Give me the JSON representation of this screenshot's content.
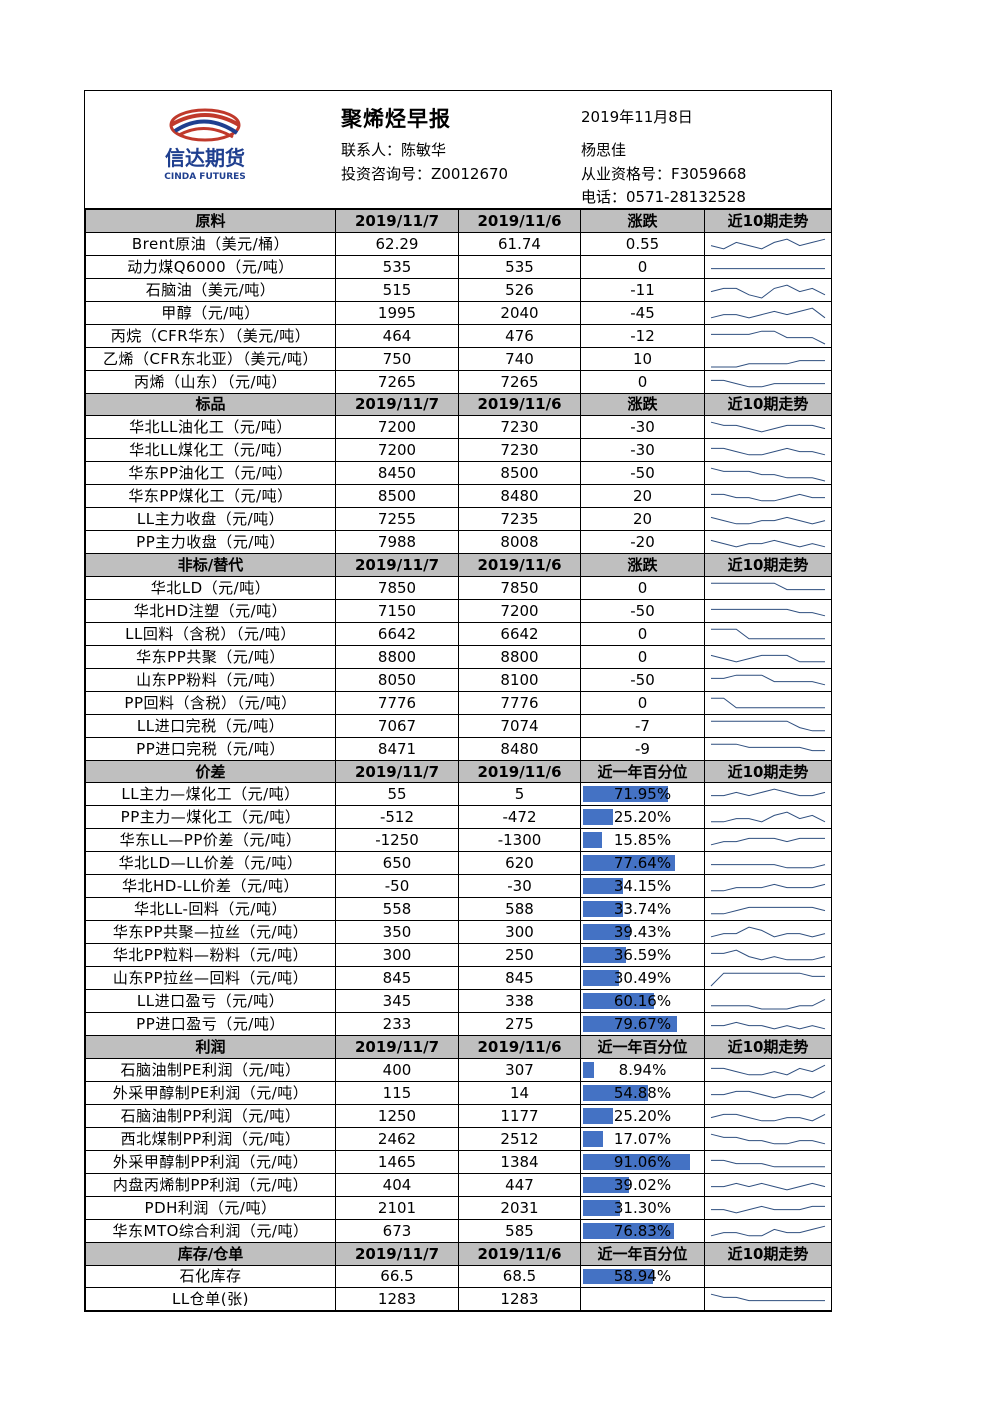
{
  "header": {
    "title": "聚烯烃早报",
    "date": "2019年11月8日",
    "contact1": "联系人：陈敏华",
    "contact1_cert": "投资咨询号：Z0012670",
    "contact2": "杨思佳",
    "contact2_cert": "从业资格号：F3059668",
    "phone": "电话：0571-28132528",
    "logo_text": "信达期货",
    "logo_sub": "CINDA FUTURES"
  },
  "colors": {
    "section_bg": "#bfbfbf",
    "bar": "#4472c4",
    "spark": "#2f4f7f"
  },
  "sections": [
    {
      "title": "原料",
      "col1": "2019/11/7",
      "col2": "2019/11/6",
      "col3": "涨跌",
      "col4": "近10期走势",
      "rows": [
        {
          "label": "Brent原油（美元/桶）",
          "v1": "62.29",
          "v2": "61.74",
          "v3": "0.55",
          "trend": [
            5,
            4,
            6,
            5,
            4,
            6,
            7,
            5,
            6,
            7
          ]
        },
        {
          "label": "动力煤Q6000（元/吨）",
          "v1": "535",
          "v2": "535",
          "v3": "0",
          "trend": [
            5,
            5,
            5,
            5,
            5,
            5,
            5,
            5,
            5,
            5
          ]
        },
        {
          "label": "石脑油（美元/吨）",
          "v1": "515",
          "v2": "526",
          "v3": "-11",
          "trend": [
            5,
            6,
            6,
            4,
            3,
            6,
            7,
            5,
            6,
            4
          ]
        },
        {
          "label": "甲醇（元/吨）",
          "v1": "1995",
          "v2": "2040",
          "v3": "-45",
          "trend": [
            4,
            5,
            5,
            4,
            5,
            6,
            5,
            6,
            7,
            4
          ]
        },
        {
          "label": "丙烷（CFR华东）（美元/吨）",
          "v1": "464",
          "v2": "476",
          "v3": "-12",
          "trend": [
            6,
            6,
            6,
            6,
            7,
            7,
            5,
            5,
            5,
            3
          ]
        },
        {
          "label": "乙烯（CFR东北亚）（美元/吨）",
          "v1": "750",
          "v2": "740",
          "v3": "10",
          "trend": [
            3,
            3,
            3,
            4,
            4,
            4,
            4,
            5,
            5,
            5
          ]
        },
        {
          "label": "丙烯（山东）（元/吨）",
          "v1": "7265",
          "v2": "7265",
          "v3": "0",
          "trend": [
            6,
            6,
            5,
            4,
            4,
            5,
            5,
            5,
            5,
            5
          ]
        }
      ]
    },
    {
      "title": "标品",
      "col1": "2019/11/7",
      "col2": "2019/11/6",
      "col3": "涨跌",
      "col4": "近10期走势",
      "rows": [
        {
          "label": "华北LL油化工（元/吨）",
          "v1": "7200",
          "v2": "7230",
          "v3": "-30",
          "trend": [
            7,
            6,
            6,
            5,
            4,
            5,
            6,
            6,
            6,
            5
          ]
        },
        {
          "label": "华北LL煤化工（元/吨）",
          "v1": "7200",
          "v2": "7230",
          "v3": "-30",
          "trend": [
            6,
            6,
            5,
            4,
            4,
            5,
            6,
            5,
            5,
            4
          ]
        },
        {
          "label": "华东PP油化工（元/吨）",
          "v1": "8450",
          "v2": "8500",
          "v3": "-50",
          "trend": [
            7,
            6,
            6,
            6,
            5,
            5,
            4,
            4,
            4,
            3
          ]
        },
        {
          "label": "华东PP煤化工（元/吨）",
          "v1": "8500",
          "v2": "8480",
          "v3": "20",
          "trend": [
            6,
            6,
            5,
            5,
            4,
            4,
            5,
            6,
            5,
            5
          ]
        },
        {
          "label": "LL主力收盘（元/吨）",
          "v1": "7255",
          "v2": "7235",
          "v3": "20",
          "trend": [
            6,
            5,
            4,
            4,
            5,
            5,
            6,
            5,
            4,
            5
          ]
        },
        {
          "label": "PP主力收盘（元/吨）",
          "v1": "7988",
          "v2": "8008",
          "v3": "-20",
          "trend": [
            6,
            5,
            4,
            5,
            5,
            6,
            5,
            4,
            5,
            4
          ]
        }
      ]
    },
    {
      "title": "非标/替代",
      "col1": "2019/11/7",
      "col2": "2019/11/6",
      "col3": "涨跌",
      "col4": "近10期走势",
      "rows": [
        {
          "label": "华北LD（元/吨）",
          "v1": "7850",
          "v2": "7850",
          "v3": "0",
          "trend": [
            7,
            7,
            7,
            7,
            7,
            7,
            5,
            5,
            5,
            5
          ]
        },
        {
          "label": "华北HD注塑（元/吨）",
          "v1": "7150",
          "v2": "7200",
          "v3": "-50",
          "trend": [
            6,
            6,
            6,
            6,
            6,
            6,
            6,
            5,
            5,
            4
          ]
        },
        {
          "label": "LL回料（含税）（元/吨）",
          "v1": "6642",
          "v2": "6642",
          "v3": "0",
          "trend": [
            7,
            7,
            7,
            4,
            4,
            4,
            4,
            4,
            4,
            4
          ]
        },
        {
          "label": "华东PP共聚（元/吨）",
          "v1": "8800",
          "v2": "8800",
          "v3": "0",
          "trend": [
            6,
            5,
            4,
            5,
            6,
            6,
            6,
            4,
            4,
            4
          ]
        },
        {
          "label": "山东PP粉料（元/吨）",
          "v1": "8050",
          "v2": "8100",
          "v3": "-50",
          "trend": [
            6,
            6,
            7,
            7,
            7,
            5,
            5,
            5,
            5,
            4
          ]
        },
        {
          "label": "PP回料（含税）（元/吨）",
          "v1": "7776",
          "v2": "7776",
          "v3": "0",
          "trend": [
            7,
            7,
            4,
            4,
            4,
            4,
            4,
            4,
            4,
            4
          ]
        },
        {
          "label": "LL进口完税（元/吨）",
          "v1": "7067",
          "v2": "7074",
          "v3": "-7",
          "trend": [
            7,
            7,
            7,
            7,
            7,
            7,
            7,
            5,
            4,
            4
          ]
        },
        {
          "label": "PP进口完税（元/吨）",
          "v1": "8471",
          "v2": "8480",
          "v3": "-9",
          "trend": [
            7,
            7,
            7,
            6,
            6,
            6,
            6,
            6,
            5,
            5
          ]
        }
      ]
    },
    {
      "title": "价差",
      "col1": "2019/11/7",
      "col2": "2019/11/6",
      "col3": "近一年百分位",
      "col4": "近10期走势",
      "rows": [
        {
          "label": "LL主力—煤化工（元/吨）",
          "v1": "55",
          "v2": "5",
          "v3": "71.95%",
          "pct": 0.7195,
          "trend": [
            5,
            5,
            6,
            5,
            6,
            7,
            6,
            5,
            5,
            6
          ]
        },
        {
          "label": "PP主力—煤化工（元/吨）",
          "v1": "-512",
          "v2": "-472",
          "v3": "25.20%",
          "pct": 0.252,
          "trend": [
            4,
            4,
            5,
            5,
            4,
            6,
            7,
            5,
            6,
            4
          ]
        },
        {
          "label": "华东LL—PP价差（元/吨）",
          "v1": "-1250",
          "v2": "-1300",
          "v3": "15.85%",
          "pct": 0.1585,
          "trend": [
            4,
            5,
            5,
            6,
            6,
            6,
            5,
            6,
            6,
            6
          ]
        },
        {
          "label": "华北LD—LL价差（元/吨）",
          "v1": "650",
          "v2": "620",
          "v3": "77.64%",
          "pct": 0.7764,
          "trend": [
            5,
            5,
            5,
            5,
            5,
            5,
            4,
            4,
            4,
            5
          ]
        },
        {
          "label": "华北HD-LL价差（元/吨）",
          "v1": "-50",
          "v2": "-30",
          "v3": "34.15%",
          "pct": 0.3415,
          "trend": [
            4,
            4,
            5,
            5,
            5,
            6,
            5,
            5,
            5,
            6
          ]
        },
        {
          "label": "华北LL-回料（元/吨）",
          "v1": "558",
          "v2": "588",
          "v3": "33.74%",
          "pct": 0.3374,
          "trend": [
            4,
            4,
            5,
            6,
            6,
            6,
            6,
            6,
            6,
            5
          ]
        },
        {
          "label": "华东PP共聚—拉丝（元/吨）",
          "v1": "350",
          "v2": "300",
          "v3": "39.43%",
          "pct": 0.3943,
          "trend": [
            4,
            5,
            5,
            7,
            6,
            4,
            5,
            5,
            4,
            5
          ]
        },
        {
          "label": "华北PP粒料—粉料（元/吨）",
          "v1": "300",
          "v2": "250",
          "v3": "36.59%",
          "pct": 0.3659,
          "trend": [
            6,
            6,
            7,
            5,
            4,
            5,
            4,
            4,
            4,
            5
          ]
        },
        {
          "label": "山东PP拉丝—回料（元/吨）",
          "v1": "845",
          "v2": "845",
          "v3": "30.49%",
          "pct": 0.3049,
          "trend": [
            3,
            7,
            7,
            7,
            7,
            7,
            7,
            7,
            6,
            6
          ]
        },
        {
          "label": "LL进口盈亏（元/吨）",
          "v1": "345",
          "v2": "338",
          "v3": "60.16%",
          "pct": 0.6016,
          "trend": [
            4,
            4,
            4,
            4,
            3,
            3,
            3,
            4,
            4,
            6
          ]
        },
        {
          "label": "PP进口盈亏（元/吨）",
          "v1": "233",
          "v2": "275",
          "v3": "79.67%",
          "pct": 0.7967,
          "trend": [
            5,
            5,
            6,
            5,
            5,
            4,
            5,
            4,
            5,
            4
          ]
        }
      ]
    },
    {
      "title": "利润",
      "col1": "2019/11/7",
      "col2": "2019/11/6",
      "col3": "近一年百分位",
      "col4": "近10期走势",
      "rows": [
        {
          "label": "石脑油制PE利润（元/吨）",
          "v1": "400",
          "v2": "307",
          "v3": "8.94%",
          "pct": 0.0894,
          "trend": [
            6,
            6,
            5,
            4,
            4,
            5,
            4,
            6,
            5,
            7
          ]
        },
        {
          "label": "外采甲醇制PE利润（元/吨）",
          "v1": "115",
          "v2": "14",
          "v3": "54.88%",
          "pct": 0.5488,
          "trend": [
            5,
            5,
            6,
            6,
            5,
            4,
            5,
            5,
            4,
            6
          ]
        },
        {
          "label": "石脑油制PP利润（元/吨）",
          "v1": "1250",
          "v2": "1177",
          "v3": "25.20%",
          "pct": 0.252,
          "trend": [
            5,
            6,
            6,
            5,
            4,
            4,
            5,
            5,
            4,
            6
          ]
        },
        {
          "label": "西北煤制PP利润（元/吨）",
          "v1": "2462",
          "v2": "2512",
          "v3": "17.07%",
          "pct": 0.1707,
          "trend": [
            7,
            6,
            6,
            5,
            5,
            4,
            4,
            5,
            5,
            4
          ]
        },
        {
          "label": "外采甲醇制PP利润（元/吨）",
          "v1": "1465",
          "v2": "1384",
          "v3": "91.06%",
          "pct": 0.9106,
          "trend": [
            6,
            6,
            5,
            5,
            5,
            4,
            4,
            4,
            4,
            4
          ]
        },
        {
          "label": "内盘丙烯制PP利润（元/吨）",
          "v1": "404",
          "v2": "447",
          "v3": "39.02%",
          "pct": 0.3902,
          "trend": [
            5,
            5,
            6,
            5,
            6,
            5,
            4,
            5,
            6,
            5
          ]
        },
        {
          "label": "PDH利润（元/吨）",
          "v1": "2101",
          "v2": "2031",
          "v3": "31.30%",
          "pct": 0.313,
          "trend": [
            5,
            5,
            4,
            5,
            6,
            5,
            5,
            5,
            6,
            6
          ]
        },
        {
          "label": "华东MTO综合利润（元/吨）",
          "v1": "673",
          "v2": "585",
          "v3": "76.83%",
          "pct": 0.7683,
          "trend": [
            4,
            5,
            5,
            4,
            4,
            6,
            5,
            5,
            6,
            7
          ]
        }
      ]
    },
    {
      "title": "库存/仓单",
      "col1": "2019/11/7",
      "col2": "2019/11/6",
      "col3": "近一年百分位",
      "col4": "近10期走势",
      "rows": [
        {
          "label": "石化库存",
          "v1": "66.5",
          "v2": "68.5",
          "v3": "58.94%",
          "pct": 0.5894,
          "trend": null
        },
        {
          "label": "LL仓单(张)",
          "v1": "1283",
          "v2": "1283",
          "v3": "",
          "trend": [
            7,
            6,
            6,
            5,
            5,
            5,
            5,
            5,
            5,
            5
          ]
        }
      ]
    }
  ]
}
